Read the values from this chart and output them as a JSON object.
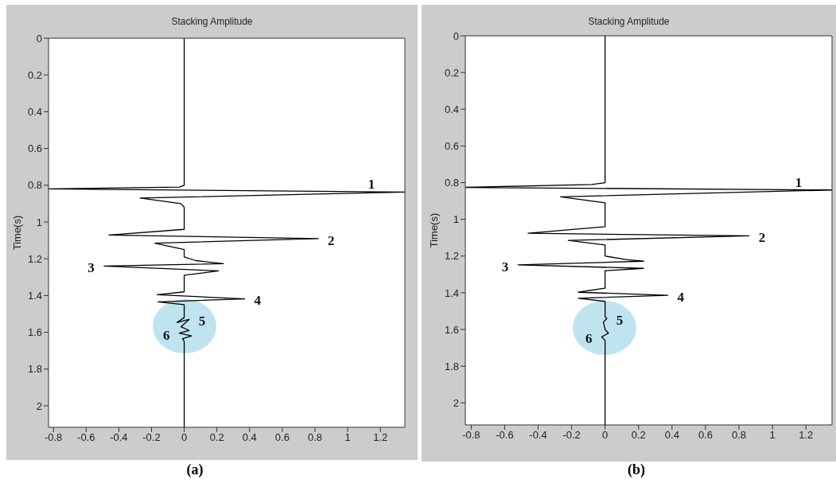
{
  "chart_data": [
    {
      "type": "line",
      "title": "Stacking Amplitude",
      "ylabel": "Time(s)",
      "series": [
        {
          "color": "#000000",
          "x": [
            0,
            0,
            -0.03,
            -0.83,
            1.35,
            -0.27,
            -0.02,
            0,
            0,
            -0.46,
            0.82,
            -0.18,
            0,
            0,
            0.07,
            0.24,
            -0.49,
            0.21,
            0,
            0,
            -0.165,
            0.37,
            -0.16,
            0,
            0,
            -0.044,
            0.03,
            -0.02,
            0.03,
            -0.03,
            0.045,
            -0.01,
            0,
            0
          ],
          "values": [
            0,
            0.8,
            0.81,
            0.82,
            0.837,
            0.87,
            0.9,
            0.92,
            1.04,
            1.071,
            1.09,
            1.115,
            1.15,
            1.19,
            1.21,
            1.227,
            1.24,
            1.266,
            1.29,
            1.38,
            1.396,
            1.418,
            1.435,
            1.45,
            1.52,
            1.547,
            1.53,
            1.57,
            1.59,
            1.605,
            1.62,
            1.635,
            1.65,
            2.117
          ]
        }
      ],
      "xlim": [
        -0.83,
        1.35
      ],
      "ylim": [
        2.117,
        0
      ],
      "xticks": [
        -0.8,
        -0.6,
        -0.4,
        -0.2,
        0,
        0.2,
        0.4,
        0.6,
        0.8,
        1,
        1.2
      ],
      "yticks": [
        0,
        0.2,
        0.4,
        0.6,
        0.8,
        1,
        1.2,
        1.4,
        1.6,
        1.8,
        2
      ],
      "annotations": [
        {
          "text": "1",
          "x": 1.35,
          "y": 0.837
        },
        {
          "text": "2",
          "x": 0.82,
          "y": 1.09
        },
        {
          "text": "3",
          "x": -0.49,
          "y": 1.24
        },
        {
          "text": "4",
          "x": 0.37,
          "y": 1.418
        },
        {
          "text": "5",
          "x": 0.03,
          "y": 1.53
        },
        {
          "text": "6",
          "x": -0.03,
          "y": 1.605
        },
        "(a)"
      ]
    },
    {
      "type": "line",
      "title": "Stacking Amplitude",
      "ylabel": "Time(s)",
      "series": [
        {
          "color": "#000000",
          "x": [
            0,
            0,
            -0.08,
            -0.835,
            1.356,
            -0.266,
            0,
            0,
            -0.46,
            0.86,
            -0.22,
            0,
            0,
            0.13,
            0.23,
            -0.52,
            0.23,
            0,
            0,
            -0.16,
            0.375,
            -0.16,
            0,
            0,
            0.01,
            -0.01,
            0,
            0.02,
            -0.02,
            0,
            0
          ],
          "values": [
            0,
            0.8,
            0.81,
            0.826,
            0.84,
            0.877,
            0.91,
            1.04,
            1.076,
            1.09,
            1.115,
            1.14,
            1.2,
            1.22,
            1.228,
            1.248,
            1.267,
            1.28,
            1.375,
            1.397,
            1.414,
            1.43,
            1.447,
            1.53,
            1.54,
            1.56,
            1.6,
            1.62,
            1.64,
            1.66,
            2.12
          ]
        }
      ],
      "xlim": [
        -0.835,
        1.356
      ],
      "ylim": [
        2.12,
        0
      ],
      "xticks": [
        -0.8,
        -0.6,
        -0.4,
        -0.2,
        0,
        0.2,
        0.4,
        0.6,
        0.8,
        1,
        1.2
      ],
      "yticks": [
        0,
        0.2,
        0.4,
        0.6,
        0.8,
        1,
        1.2,
        1.4,
        1.6,
        1.8,
        2
      ],
      "annotations": [
        {
          "text": "1",
          "x": 1.356,
          "y": 0.84
        },
        {
          "text": "2",
          "x": 0.86,
          "y": 1.09
        },
        {
          "text": "3",
          "x": -0.52,
          "y": 1.248
        },
        {
          "text": "4",
          "x": 0.375,
          "y": 1.414
        },
        {
          "text": "5",
          "x": 0.01,
          "y": 1.54
        },
        {
          "text": "6",
          "x": -0.02,
          "y": 1.64
        },
        "(b)"
      ]
    }
  ]
}
